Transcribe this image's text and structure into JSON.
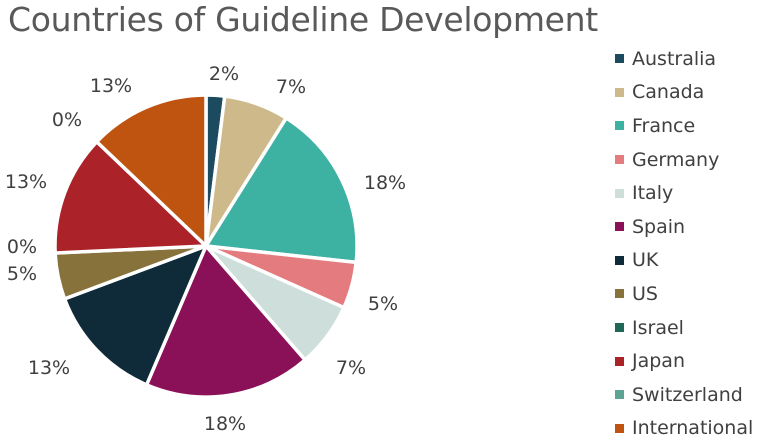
{
  "chart_data": {
    "type": "pie",
    "title": "Countries of Guideline Development",
    "legend_position": "right",
    "slices": [
      {
        "name": "Australia",
        "value": 2,
        "label": "2%",
        "color": "#1C4A5E"
      },
      {
        "name": "Canada",
        "value": 7,
        "label": "7%",
        "color": "#CDB989"
      },
      {
        "name": "France",
        "value": 18,
        "label": "18%",
        "color": "#3DB1A2"
      },
      {
        "name": "Germany",
        "value": 5,
        "label": "5%",
        "color": "#E47B7F"
      },
      {
        "name": "Italy",
        "value": 7,
        "label": "7%",
        "color": "#CEDFDB"
      },
      {
        "name": "Spain",
        "value": 18,
        "label": "18%",
        "color": "#8A1058"
      },
      {
        "name": "UK",
        "value": 13,
        "label": "13%",
        "color": "#0F2B3A"
      },
      {
        "name": "US",
        "value": 5,
        "label": "5%",
        "color": "#88723B"
      },
      {
        "name": "Israel",
        "value": 0,
        "label": "0%",
        "color": "#1F6858"
      },
      {
        "name": "Japan",
        "value": 13,
        "label": "13%",
        "color": "#AB2328"
      },
      {
        "name": "Switzerland",
        "value": 0,
        "label": "0%",
        "color": "#5FA394"
      },
      {
        "name": "International",
        "value": 13,
        "label": "13%",
        "color": "#BE5410"
      }
    ]
  }
}
